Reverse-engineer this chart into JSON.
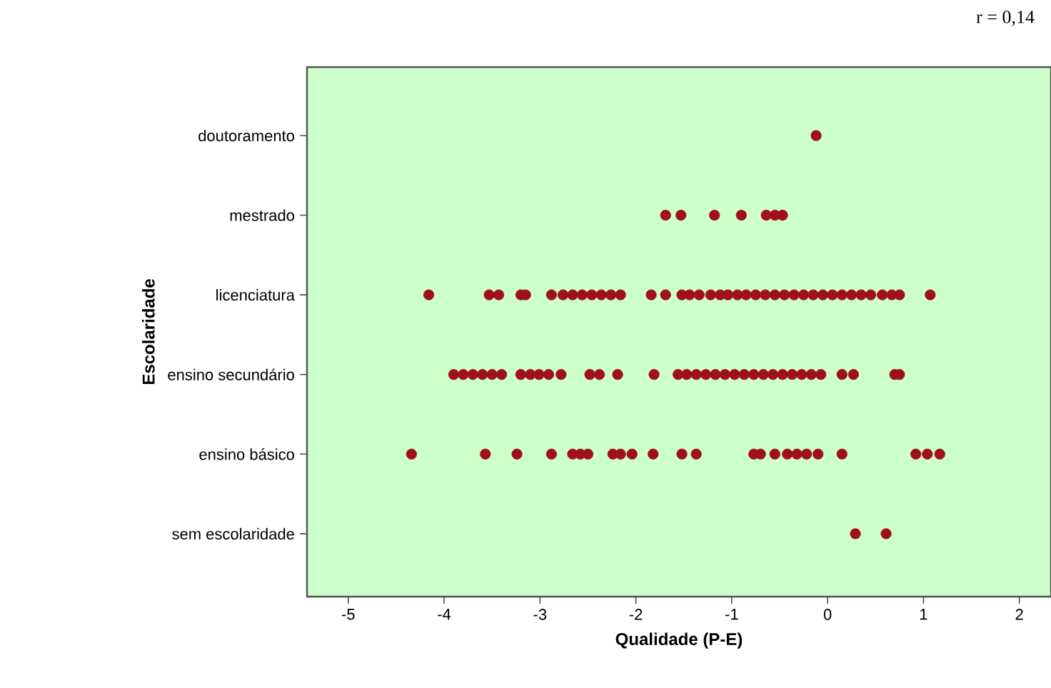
{
  "chart_data": {
    "type": "scatter",
    "orientation": "horizontal",
    "xlabel": "Qualidade (P-E)",
    "ylabel": "Escolaridade",
    "annotations": [
      "r = 0,14"
    ],
    "categories": [
      "doutoramento",
      "mestrado",
      "licenciatura",
      "ensino secundário",
      "ensino básico",
      "sem escolaridade"
    ],
    "xlim": [
      -5.43,
      2.33
    ],
    "xticks": [
      -5,
      -4,
      -3,
      -2,
      -1,
      0,
      1,
      2
    ],
    "grid": false,
    "marker": "circle",
    "series": [
      {
        "color": "#a01018",
        "x": [
          "doutoramento",
          "mestrado",
          "mestrado",
          "mestrado",
          "mestrado",
          "mestrado",
          "mestrado",
          "mestrado",
          "licenciatura",
          "licenciatura",
          "licenciatura",
          "licenciatura",
          "licenciatura",
          "licenciatura",
          "licenciatura",
          "licenciatura",
          "licenciatura",
          "licenciatura",
          "licenciatura",
          "licenciatura",
          "licenciatura",
          "licenciatura",
          "licenciatura",
          "licenciatura",
          "licenciatura",
          "licenciatura",
          "licenciatura",
          "licenciatura",
          "licenciatura",
          "licenciatura",
          "licenciatura",
          "licenciatura",
          "licenciatura",
          "licenciatura",
          "licenciatura",
          "licenciatura",
          "licenciatura",
          "licenciatura",
          "licenciatura",
          "licenciatura",
          "licenciatura",
          "licenciatura",
          "licenciatura",
          "licenciatura",
          "licenciatura",
          "licenciatura",
          "licenciatura",
          "licenciatura",
          "ensino secundário",
          "ensino secundário",
          "ensino secundário",
          "ensino secundário",
          "ensino secundário",
          "ensino secundário",
          "ensino secundário",
          "ensino secundário",
          "ensino secundário",
          "ensino secundário",
          "ensino secundário",
          "ensino secundário",
          "ensino secundário",
          "ensino secundário",
          "ensino secundário",
          "ensino secundário",
          "ensino secundário",
          "ensino secundário",
          "ensino secundário",
          "ensino secundário",
          "ensino secundário",
          "ensino secundário",
          "ensino secundário",
          "ensino secundário",
          "ensino secundário",
          "ensino secundário",
          "ensino secundário",
          "ensino secundário",
          "ensino secundário",
          "ensino secundário",
          "ensino secundário",
          "ensino secundário",
          "ensino secundário",
          "ensino secundário",
          "ensino secundário",
          "ensino básico",
          "ensino básico",
          "ensino básico",
          "ensino básico",
          "ensino básico",
          "ensino básico",
          "ensino básico",
          "ensino básico",
          "ensino básico",
          "ensino básico",
          "ensino básico",
          "ensino básico",
          "ensino básico",
          "ensino básico",
          "ensino básico",
          "ensino básico",
          "ensino básico",
          "ensino básico",
          "ensino básico",
          "ensino básico",
          "ensino básico",
          "ensino básico",
          "ensino básico",
          "ensino básico",
          "sem escolaridade",
          "sem escolaridade"
        ],
        "values": [
          -0.12,
          -1.69,
          -1.53,
          -1.18,
          -0.9,
          -0.64,
          -0.55,
          -0.47,
          -4.16,
          -3.53,
          -3.43,
          -3.2,
          -3.15,
          -2.88,
          -2.76,
          -2.66,
          -2.56,
          -2.46,
          -2.36,
          -2.26,
          -2.16,
          -1.84,
          -1.69,
          -1.52,
          -1.44,
          -1.34,
          -1.22,
          -1.12,
          -1.04,
          -0.94,
          -0.85,
          -0.75,
          -0.65,
          -0.55,
          -0.45,
          -0.35,
          -0.25,
          -0.15,
          -0.05,
          0.05,
          0.15,
          0.25,
          0.35,
          0.45,
          0.57,
          0.67,
          0.75,
          1.07,
          -3.9,
          -3.8,
          -3.7,
          -3.6,
          -3.5,
          -3.4,
          -3.2,
          -3.1,
          -3.01,
          -2.91,
          -2.78,
          -2.48,
          -2.38,
          -2.19,
          -1.81,
          -1.56,
          -1.47,
          -1.37,
          -1.27,
          -1.17,
          -1.07,
          -0.97,
          -0.87,
          -0.77,
          -0.67,
          -0.57,
          -0.47,
          -0.37,
          -0.27,
          -0.17,
          -0.07,
          0.15,
          0.27,
          0.7,
          0.75,
          -4.34,
          -3.57,
          -3.24,
          -2.88,
          -2.66,
          -2.58,
          -2.5,
          -2.24,
          -2.16,
          -2.04,
          -1.82,
          -1.52,
          -1.37,
          -0.77,
          -0.7,
          -0.55,
          -0.42,
          -0.32,
          -0.22,
          -0.1,
          0.15,
          0.92,
          1.04,
          1.17,
          0.29,
          0.61
        ]
      }
    ]
  }
}
